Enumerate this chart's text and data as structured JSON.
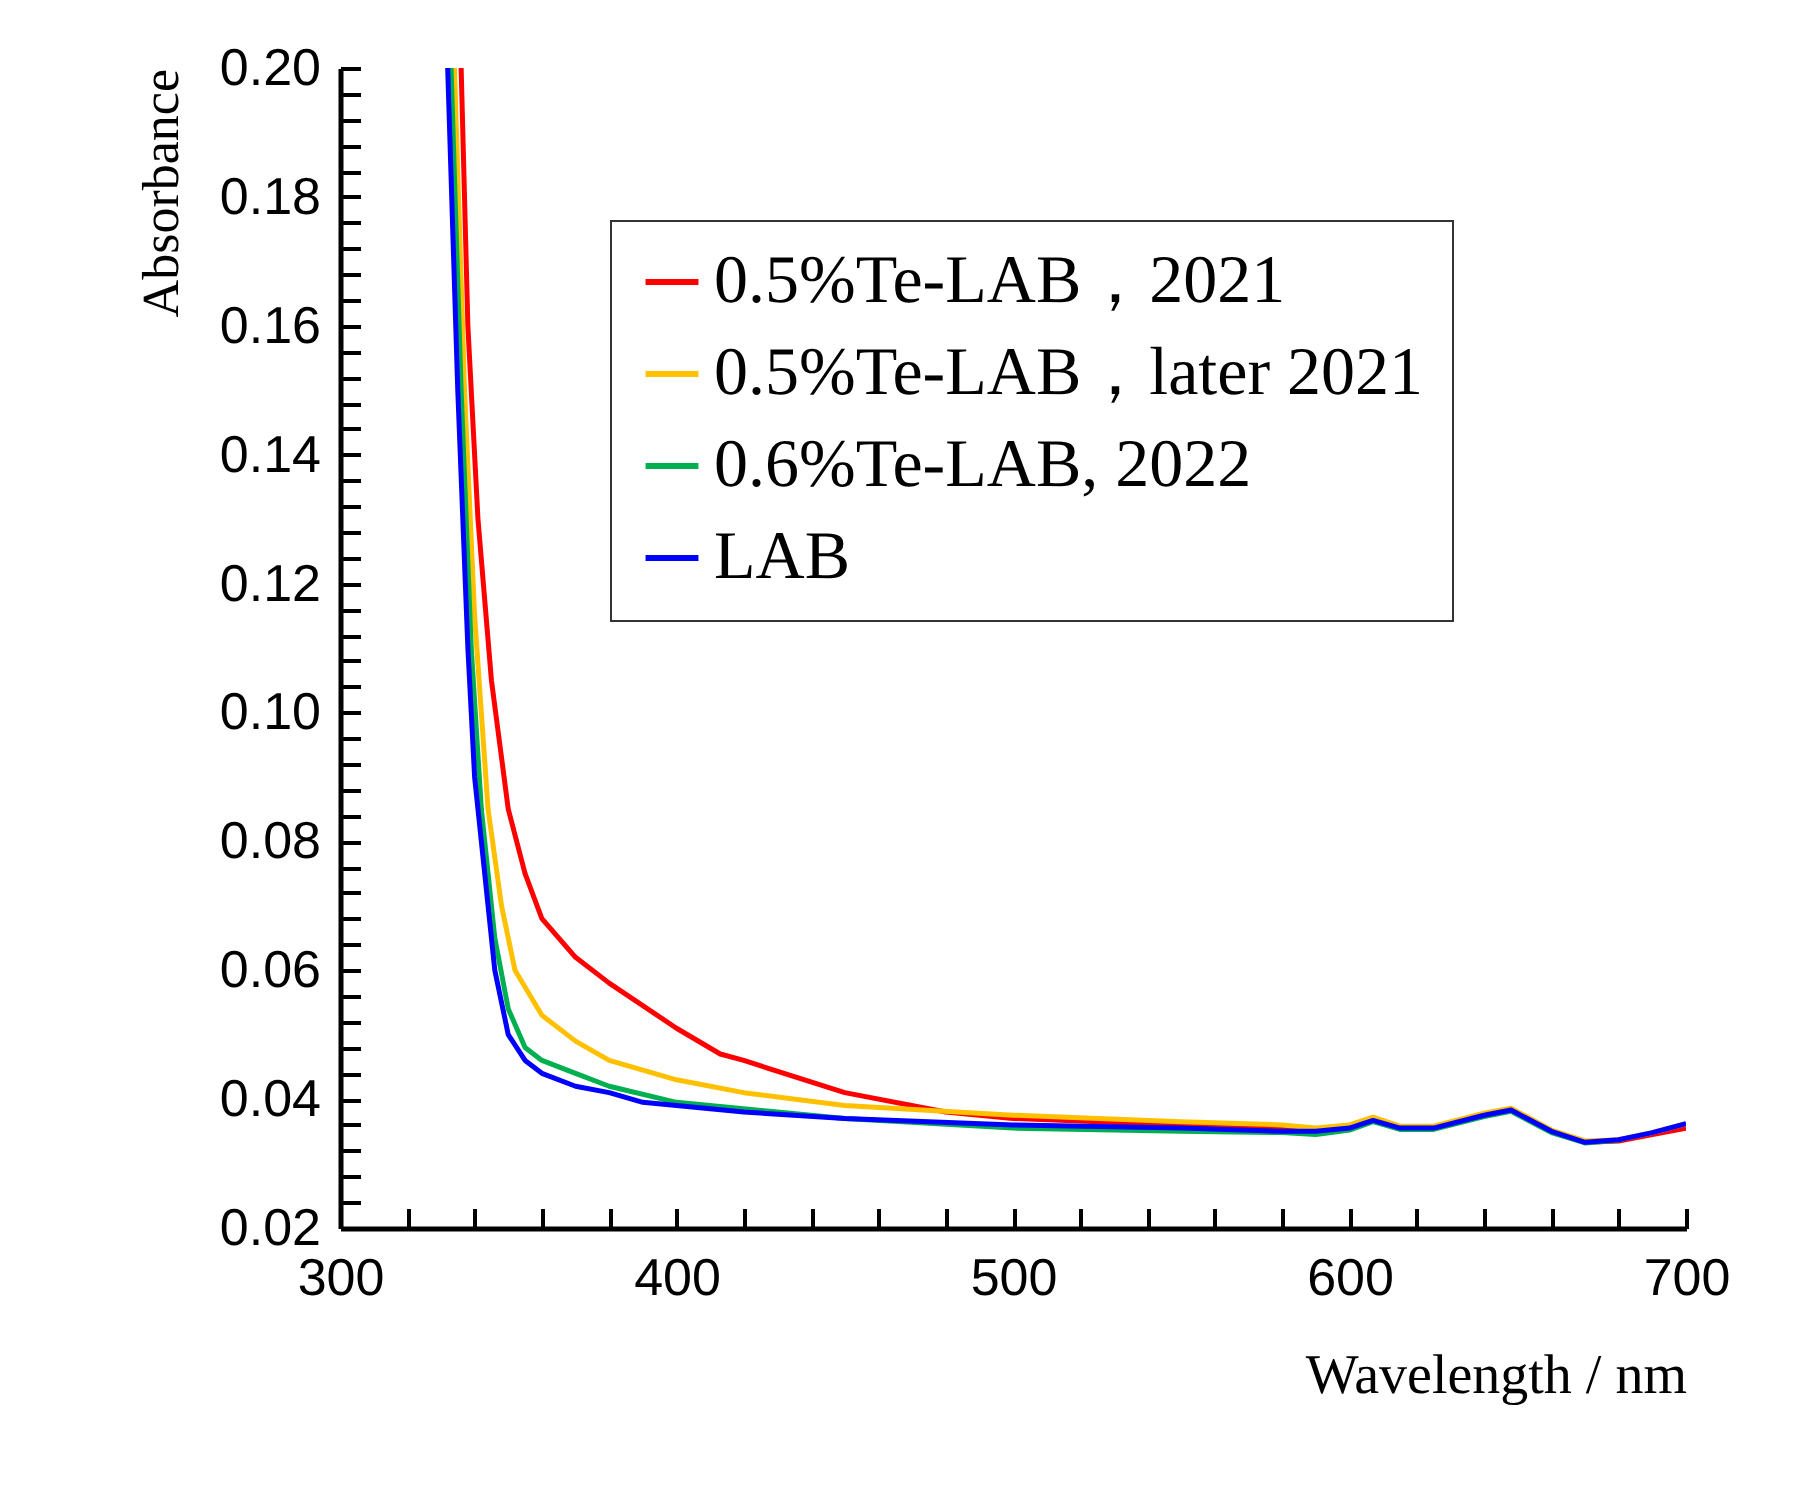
{
  "chart_data": {
    "type": "line",
    "xlabel": "Wavelength / nm",
    "ylabel": "Absorbance",
    "xlim": [
      300,
      700
    ],
    "ylim": [
      0.02,
      0.2
    ],
    "xticks": [
      300,
      {
        "value": 320,
        "label": null
      },
      {
        "value": 340,
        "label": null
      },
      {
        "value": 360,
        "label": null
      },
      {
        "value": 380,
        "label": null
      },
      400,
      {
        "value": 420,
        "label": null
      },
      {
        "value": 440,
        "label": null
      },
      {
        "value": 460,
        "label": null
      },
      {
        "value": 480,
        "label": null
      },
      500,
      {
        "value": 520,
        "label": null
      },
      {
        "value": 540,
        "label": null
      },
      {
        "value": 560,
        "label": null
      },
      {
        "value": 580,
        "label": null
      },
      600,
      {
        "value": 620,
        "label": null
      },
      {
        "value": 640,
        "label": null
      },
      {
        "value": 660,
        "label": null
      },
      {
        "value": 680,
        "label": null
      },
      700
    ],
    "yticks": [
      {
        "value": 0.02,
        "label": "0.02"
      },
      {
        "value": 0.024,
        "label": null
      },
      {
        "value": 0.028,
        "label": null
      },
      {
        "value": 0.032,
        "label": null
      },
      {
        "value": 0.036,
        "label": null
      },
      {
        "value": 0.04,
        "label": "0.04"
      },
      {
        "value": 0.044,
        "label": null
      },
      {
        "value": 0.048,
        "label": null
      },
      {
        "value": 0.052,
        "label": null
      },
      {
        "value": 0.056,
        "label": null
      },
      {
        "value": 0.06,
        "label": "0.06"
      },
      {
        "value": 0.064,
        "label": null
      },
      {
        "value": 0.068,
        "label": null
      },
      {
        "value": 0.072,
        "label": null
      },
      {
        "value": 0.076,
        "label": null
      },
      {
        "value": 0.08,
        "label": "0.08"
      },
      {
        "value": 0.084,
        "label": null
      },
      {
        "value": 0.088,
        "label": null
      },
      {
        "value": 0.092,
        "label": null
      },
      {
        "value": 0.096,
        "label": null
      },
      {
        "value": 0.1,
        "label": "0.10"
      },
      {
        "value": 0.104,
        "label": null
      },
      {
        "value": 0.108,
        "label": null
      },
      {
        "value": 0.112,
        "label": null
      },
      {
        "value": 0.116,
        "label": null
      },
      {
        "value": 0.12,
        "label": "0.12"
      },
      {
        "value": 0.124,
        "label": null
      },
      {
        "value": 0.128,
        "label": null
      },
      {
        "value": 0.132,
        "label": null
      },
      {
        "value": 0.136,
        "label": null
      },
      {
        "value": 0.14,
        "label": "0.14"
      },
      {
        "value": 0.144,
        "label": null
      },
      {
        "value": 0.148,
        "label": null
      },
      {
        "value": 0.152,
        "label": null
      },
      {
        "value": 0.156,
        "label": null
      },
      {
        "value": 0.16,
        "label": "0.16"
      },
      {
        "value": 0.164,
        "label": null
      },
      {
        "value": 0.168,
        "label": null
      },
      {
        "value": 0.172,
        "label": null
      },
      {
        "value": 0.176,
        "label": null
      },
      {
        "value": 0.18,
        "label": "0.18"
      },
      {
        "value": 0.184,
        "label": null
      },
      {
        "value": 0.188,
        "label": null
      },
      {
        "value": 0.192,
        "label": null
      },
      {
        "value": 0.196,
        "label": null
      },
      {
        "value": 0.2,
        "label": "0.20"
      }
    ],
    "grid": false,
    "legend": "top right",
    "line_style": "solid",
    "marker": "none",
    "series": [
      {
        "name": "0.5%Te-LAB，2021",
        "color": "#ff0000",
        "x": [
          336,
          338,
          341,
          345,
          350,
          355,
          360,
          370,
          380,
          400,
          413,
          420,
          450,
          480,
          500,
          550,
          580,
          590,
          600,
          607,
          615,
          625,
          640,
          648,
          660,
          670,
          680,
          690,
          700
        ],
        "values": [
          0.2,
          0.16,
          0.13,
          0.105,
          0.085,
          0.075,
          0.068,
          0.062,
          0.058,
          0.051,
          0.047,
          0.046,
          0.041,
          0.038,
          0.037,
          0.036,
          0.0355,
          0.035,
          0.0355,
          0.0367,
          0.0355,
          0.0355,
          0.0375,
          0.0383,
          0.035,
          0.0333,
          0.0335,
          0.0345,
          0.0355
        ]
      },
      {
        "name": "0.5%Te-LAB，later 2021",
        "color": "#ffc000",
        "x": [
          334,
          337,
          340,
          344,
          348,
          352,
          360,
          370,
          380,
          400,
          420,
          450,
          500,
          550,
          580,
          590,
          600,
          607,
          615,
          625,
          640,
          648,
          660,
          670,
          680,
          690,
          700
        ],
        "values": [
          0.2,
          0.15,
          0.115,
          0.085,
          0.07,
          0.06,
          0.053,
          0.049,
          0.046,
          0.043,
          0.041,
          0.039,
          0.0375,
          0.0365,
          0.036,
          0.0355,
          0.036,
          0.0372,
          0.0358,
          0.0358,
          0.0378,
          0.0386,
          0.0352,
          0.0335,
          0.0337,
          0.0348,
          0.0362
        ]
      },
      {
        "name": "0.6%Te-LAB, 2022",
        "color": "#00b050",
        "x": [
          333,
          336,
          339,
          342,
          346,
          350,
          355,
          360,
          370,
          380,
          400,
          450,
          500,
          550,
          580,
          590,
          600,
          607,
          615,
          625,
          640,
          648,
          660,
          670,
          680
        ],
        "values": [
          0.2,
          0.15,
          0.11,
          0.085,
          0.065,
          0.054,
          0.048,
          0.046,
          0.044,
          0.042,
          0.0395,
          0.037,
          0.0355,
          0.035,
          0.0348,
          0.0345,
          0.0352,
          0.0365,
          0.0353,
          0.0353,
          0.0373,
          0.0381,
          0.0348,
          0.0332,
          0.0336
        ]
      },
      {
        "name": "LAB",
        "color": "#0000ff",
        "x": [
          332,
          335,
          338,
          340,
          343,
          346,
          350,
          355,
          360,
          370,
          380,
          390,
          400,
          420,
          450,
          500,
          550,
          580,
          590,
          600,
          607,
          615,
          625,
          640,
          648,
          660,
          670,
          680,
          690,
          700
        ],
        "values": [
          0.2,
          0.15,
          0.11,
          0.09,
          0.075,
          0.06,
          0.05,
          0.046,
          0.044,
          0.042,
          0.041,
          0.0395,
          0.039,
          0.038,
          0.037,
          0.036,
          0.0355,
          0.035,
          0.035,
          0.0355,
          0.0367,
          0.0355,
          0.0355,
          0.0375,
          0.0383,
          0.035,
          0.0333,
          0.0337,
          0.0348,
          0.0362
        ]
      }
    ]
  }
}
